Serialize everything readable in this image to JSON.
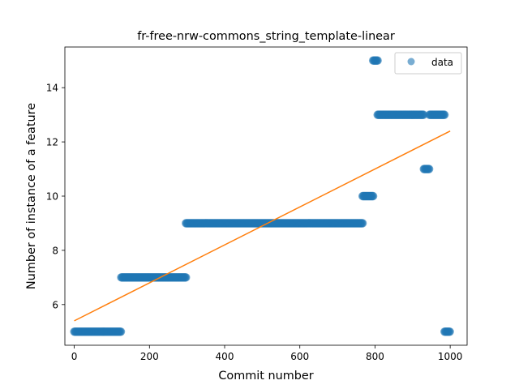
{
  "chart_data": {
    "type": "scatter",
    "title": "fr-free-nrw-commons_string_template-linear",
    "xlabel": "Commit number",
    "ylabel": "Number of instance of a feature",
    "xlim": [
      -25,
      1045
    ],
    "ylim": [
      4.5,
      15.5
    ],
    "xticks": [
      0,
      200,
      400,
      600,
      800,
      1000
    ],
    "yticks": [
      6,
      8,
      10,
      12,
      14
    ],
    "grid": false,
    "legend": {
      "position": "top-right",
      "entries": [
        "data"
      ]
    },
    "colors": {
      "data": "#1f77b4",
      "fit": "#ff7f0e"
    },
    "series": [
      {
        "name": "data",
        "kind": "scatter",
        "segments": [
          {
            "x_start": 0,
            "x_end": 125,
            "y": 5
          },
          {
            "x_start": 125,
            "x_end": 297,
            "y": 7
          },
          {
            "x_start": 297,
            "x_end": 767,
            "y": 9
          },
          {
            "x_start": 767,
            "x_end": 795,
            "y": 10
          },
          {
            "x_start": 795,
            "x_end": 807,
            "y": 15
          },
          {
            "x_start": 807,
            "x_end": 930,
            "y": 13
          },
          {
            "x_start": 930,
            "x_end": 945,
            "y": 11
          },
          {
            "x_start": 945,
            "x_end": 985,
            "y": 13
          },
          {
            "x_start": 985,
            "x_end": 1000,
            "y": 5
          }
        ]
      },
      {
        "kind": "line",
        "x": [
          0,
          1000
        ],
        "y": [
          5.4,
          12.4
        ]
      }
    ]
  }
}
